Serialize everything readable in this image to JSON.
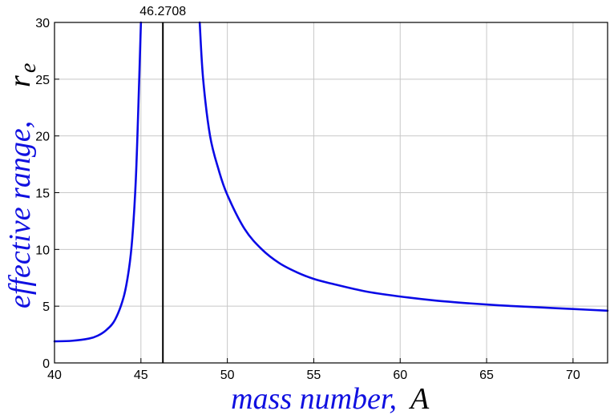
{
  "chart_data": {
    "type": "line",
    "xlabel": "mass number,",
    "xlabel_var": "A",
    "ylabel": "effective range,",
    "ylabel_var": "r",
    "ylabel_var_sub": "e",
    "xlim": [
      40,
      72
    ],
    "ylim": [
      0,
      30
    ],
    "x_ticks": [
      40,
      45,
      50,
      55,
      60,
      65,
      70
    ],
    "y_ticks": [
      0,
      5,
      10,
      15,
      20,
      25,
      30
    ],
    "grid": true,
    "colors": {
      "series": "#0a0ae6",
      "vline": "#000000",
      "grid": "#c8c8c8",
      "axis_title": "#1010e0"
    },
    "annotation": {
      "label": "46.2708",
      "x": 46.2708
    },
    "series": [
      {
        "x": [
          40,
          41,
          42,
          42.5,
          43,
          43.5,
          44,
          44.3,
          44.5,
          44.7,
          44.85,
          45.0,
          48.4,
          48.6,
          49,
          49.5,
          50,
          51,
          52,
          53,
          54,
          55,
          56,
          58,
          60,
          62,
          64,
          66,
          68,
          70,
          72
        ],
        "y": [
          1.9,
          1.95,
          2.15,
          2.4,
          2.9,
          3.8,
          5.8,
          8.2,
          11.0,
          16.0,
          22.5,
          30.0,
          30.0,
          25.0,
          20.0,
          17.0,
          14.8,
          11.8,
          10.0,
          8.8,
          8.0,
          7.4,
          7.0,
          6.3,
          5.85,
          5.5,
          5.25,
          5.05,
          4.9,
          4.75,
          4.6
        ]
      }
    ]
  }
}
